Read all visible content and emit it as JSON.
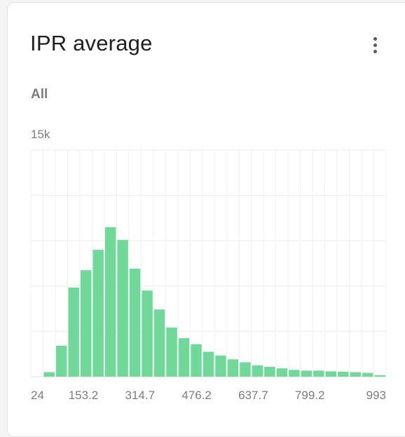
{
  "card": {
    "title": "IPR average",
    "filter_label": "All",
    "menu_icon": "more-vertical-icon"
  },
  "chart_data": {
    "type": "bar",
    "title": "IPR average",
    "subtitle": "All",
    "ymax_label": "15k",
    "ylim": [
      0,
      15000
    ],
    "grid": true,
    "x_tick_labels": [
      "24",
      "153.2",
      "314.7",
      "476.2",
      "637.7",
      "799.2",
      "993"
    ],
    "bin_range": [
      24,
      993
    ],
    "values": [
      0,
      300,
      2050,
      5900,
      7050,
      8400,
      9900,
      9050,
      7150,
      5700,
      4450,
      3250,
      2550,
      2150,
      1650,
      1400,
      1150,
      950,
      750,
      650,
      550,
      450,
      400,
      400,
      350,
      330,
      300,
      250,
      100
    ],
    "bar_color": "#70d99a"
  }
}
